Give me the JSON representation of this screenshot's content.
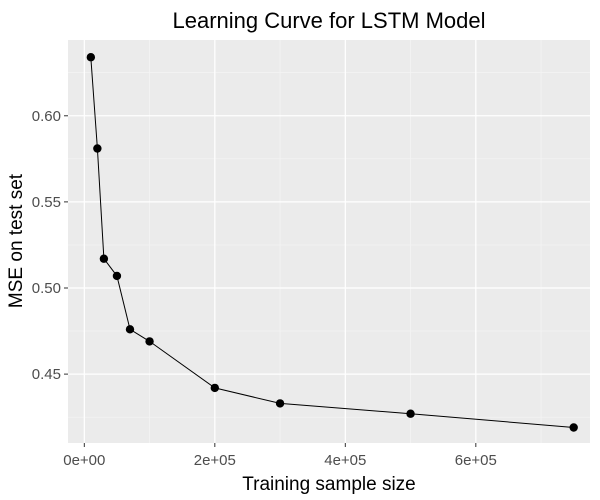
{
  "chart_data": {
    "type": "line",
    "title": "Learning Curve for LSTM Model",
    "xlabel": "Training sample size",
    "ylabel": "MSE on test set",
    "xlim": [
      -25000,
      775000
    ],
    "ylim": [
      0.41,
      0.644
    ],
    "x_ticks": [
      {
        "value": 0,
        "label": "0e+00"
      },
      {
        "value": 200000,
        "label": "2e+05"
      },
      {
        "value": 400000,
        "label": "4e+05"
      },
      {
        "value": 600000,
        "label": "6e+05"
      }
    ],
    "y_ticks": [
      {
        "value": 0.45,
        "label": "0.45"
      },
      {
        "value": 0.5,
        "label": "0.50"
      },
      {
        "value": 0.55,
        "label": "0.55"
      },
      {
        "value": 0.6,
        "label": "0.60"
      }
    ],
    "grid": true,
    "legend": "none",
    "series": [
      {
        "x": [
          10000,
          20000,
          30000,
          50000,
          70000,
          100000,
          200000,
          300000,
          500000,
          750000
        ],
        "y": [
          0.634,
          0.581,
          0.517,
          0.507,
          0.476,
          0.469,
          0.442,
          0.433,
          0.427,
          0.419
        ]
      }
    ],
    "colors": {
      "panel": "#ebebeb",
      "grid_major": "#ffffff",
      "grid_minor": "#f5f5f5",
      "line": "#000000",
      "point": "#000000",
      "tick_text": "#4d4d4d"
    }
  }
}
